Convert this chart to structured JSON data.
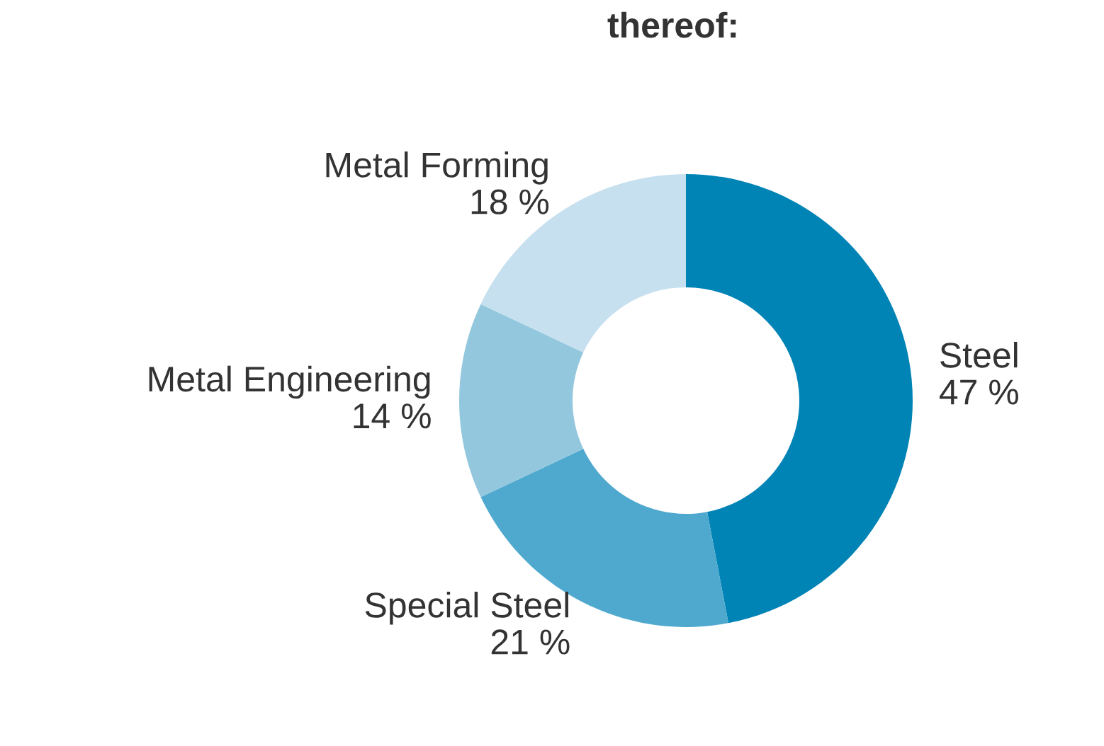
{
  "chart_data": {
    "type": "donut",
    "title": "thereof:",
    "categories": [
      "Steel",
      "Special Steel",
      "Metal Engineering",
      "Metal Forming"
    ],
    "values": [
      47,
      21,
      14,
      18
    ],
    "value_labels": [
      "47 %",
      "21 %",
      "14 %",
      "18 %"
    ],
    "colors": [
      "#0083b5",
      "#4fa9cf",
      "#93c7dd",
      "#c6e0ef"
    ],
    "legend": false
  }
}
